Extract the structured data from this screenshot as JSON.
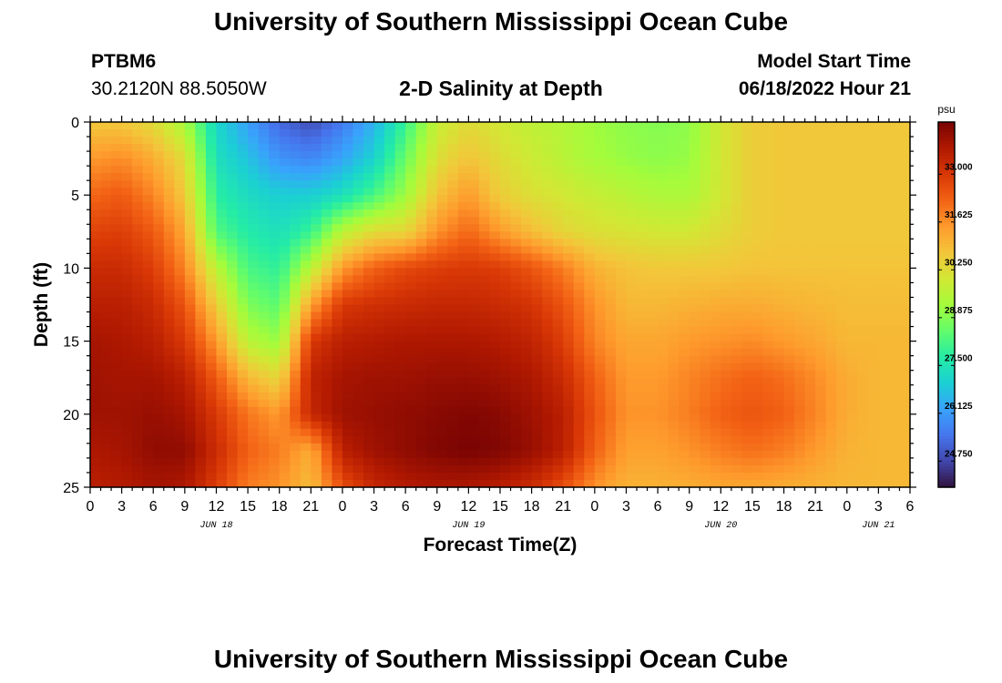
{
  "header": {
    "title": "University of Southern Mississippi Ocean Cube",
    "station_id": "PTBM6",
    "coordinates": "30.2120N  88.5050W",
    "subtitle": "2-D Salinity at Depth",
    "model_start_label": "Model Start Time",
    "model_start_value": "06/18/2022 Hour 21"
  },
  "footer": {
    "title": "University of Southern Mississippi Ocean Cube"
  },
  "chart_data": {
    "type": "heatmap",
    "title": "2-D Salinity at Depth",
    "xlabel": "Forecast Time(Z)",
    "ylabel": "Depth (ft)",
    "x_start_hour": 0,
    "x_end_hour": 78,
    "x_tick_labels": [
      "0",
      "3",
      "6",
      "9",
      "12",
      "15",
      "18",
      "21",
      "0",
      "3",
      "6",
      "9",
      "12",
      "15",
      "18",
      "21",
      "0",
      "3",
      "6",
      "9",
      "12",
      "15",
      "18",
      "21",
      "0",
      "3",
      "6"
    ],
    "date_labels": [
      {
        "text": "JUN 18",
        "hour": 12
      },
      {
        "text": "JUN 19",
        "hour": 36
      },
      {
        "text": "JUN 20",
        "hour": 60
      },
      {
        "text": "JUN 21",
        "hour": 75
      }
    ],
    "ylim": [
      0,
      25
    ],
    "y_ticks": [
      0,
      5,
      10,
      15,
      20,
      25
    ],
    "colorbar": {
      "unit": "psu",
      "min": 24.0,
      "max": 34.5,
      "ticks": [
        "33.000",
        "31.625",
        "30.250",
        "28.875",
        "27.500",
        "26.125",
        "24.750"
      ],
      "colors": [
        "#30123b",
        "#4145ab",
        "#4675ed",
        "#39a2fc",
        "#1bcfd4",
        "#24eca6",
        "#61fc6c",
        "#a4fc3b",
        "#d1e834",
        "#f3c63a",
        "#fe9b2d",
        "#f36315",
        "#d93806",
        "#b11901",
        "#7a0403"
      ]
    },
    "salinity_field": {
      "description": "Salinity (psu) sampled on a regular grid; rows = depth 0..25 ft, columns = forecast hour 0..78",
      "depths_ft": [
        0,
        2.5,
        5,
        7.5,
        10,
        12.5,
        15,
        17.5,
        20,
        22.5,
        25
      ],
      "hours": [
        0,
        3,
        6,
        9,
        12,
        15,
        18,
        21,
        24,
        27,
        30,
        33,
        36,
        39,
        42,
        45,
        48,
        51,
        54,
        57,
        60,
        63,
        66,
        69,
        72,
        75,
        78
      ],
      "values": [
        [
          30.7,
          30.7,
          30.3,
          29.3,
          27.2,
          26.2,
          25.3,
          24.9,
          25.6,
          26.5,
          28.0,
          29.8,
          30.3,
          30.0,
          29.7,
          29.5,
          29.2,
          29.0,
          28.9,
          29.0,
          30.0,
          30.6,
          30.7,
          30.7,
          30.7,
          30.7,
          30.7
        ],
        [
          31.5,
          31.7,
          31.2,
          30.3,
          27.4,
          26.8,
          26.0,
          25.8,
          26.3,
          27.1,
          28.6,
          30.2,
          30.8,
          30.3,
          29.9,
          29.6,
          29.3,
          29.1,
          29.0,
          29.1,
          30.0,
          30.6,
          30.7,
          30.7,
          30.7,
          30.7,
          30.7
        ],
        [
          32.2,
          32.4,
          31.8,
          30.7,
          27.8,
          27.3,
          27.0,
          27.0,
          27.4,
          28.2,
          29.2,
          30.8,
          31.5,
          30.6,
          30.2,
          30.0,
          29.8,
          29.6,
          29.4,
          29.4,
          30.0,
          30.6,
          30.7,
          30.7,
          30.7,
          30.7,
          30.7
        ],
        [
          32.8,
          32.9,
          32.4,
          31.3,
          28.3,
          27.7,
          27.4,
          28.0,
          29.6,
          30.3,
          30.4,
          31.6,
          32.2,
          31.5,
          30.9,
          30.4,
          30.2,
          30.1,
          30.0,
          30.0,
          30.3,
          30.6,
          30.7,
          30.7,
          30.7,
          30.7,
          30.7
        ],
        [
          33.3,
          33.3,
          32.9,
          31.8,
          29.6,
          28.2,
          27.9,
          29.6,
          31.5,
          32.3,
          32.7,
          32.9,
          33.0,
          32.9,
          32.5,
          31.9,
          31.1,
          30.8,
          30.7,
          30.7,
          30.7,
          30.8,
          30.8,
          30.8,
          30.8,
          30.8,
          30.8
        ],
        [
          33.6,
          33.6,
          33.3,
          32.5,
          30.6,
          28.8,
          28.4,
          31.4,
          33.0,
          33.2,
          33.3,
          33.4,
          33.4,
          33.3,
          33.1,
          32.5,
          31.6,
          31.0,
          31.0,
          31.1,
          31.2,
          31.2,
          31.1,
          31.0,
          30.9,
          30.9,
          30.9
        ],
        [
          33.9,
          33.8,
          33.6,
          33.0,
          31.5,
          29.6,
          29.1,
          33.0,
          33.6,
          33.7,
          33.8,
          33.8,
          33.8,
          33.7,
          33.5,
          32.9,
          31.8,
          31.3,
          31.3,
          31.5,
          31.6,
          31.7,
          31.5,
          31.3,
          31.0,
          31.0,
          31.0
        ],
        [
          34.0,
          33.9,
          33.9,
          33.6,
          32.4,
          31.0,
          30.4,
          33.5,
          33.9,
          34.0,
          34.0,
          34.1,
          34.1,
          34.0,
          33.8,
          33.3,
          32.3,
          31.5,
          31.5,
          31.8,
          32.1,
          32.3,
          32.1,
          31.7,
          31.2,
          31.0,
          31.0
        ],
        [
          34.0,
          34.0,
          34.1,
          33.9,
          33.0,
          32.0,
          31.5,
          33.4,
          34.0,
          34.1,
          34.2,
          34.3,
          34.4,
          34.3,
          34.0,
          33.6,
          32.5,
          31.6,
          31.6,
          31.9,
          32.3,
          32.5,
          32.3,
          31.8,
          31.2,
          31.0,
          31.0
        ],
        [
          33.8,
          33.9,
          34.2,
          34.2,
          33.3,
          32.3,
          31.9,
          31.2,
          33.6,
          34.0,
          34.2,
          34.4,
          34.5,
          34.4,
          34.1,
          33.6,
          32.3,
          31.4,
          31.4,
          31.6,
          31.9,
          32.1,
          31.9,
          31.5,
          31.1,
          31.0,
          31.0
        ],
        [
          33.6,
          33.7,
          33.9,
          33.8,
          32.9,
          31.9,
          31.6,
          30.9,
          32.6,
          33.4,
          33.7,
          33.8,
          33.8,
          33.6,
          33.3,
          32.6,
          31.6,
          31.1,
          31.1,
          31.2,
          31.3,
          31.3,
          31.2,
          31.1,
          31.0,
          31.0,
          31.0
        ]
      ]
    }
  }
}
